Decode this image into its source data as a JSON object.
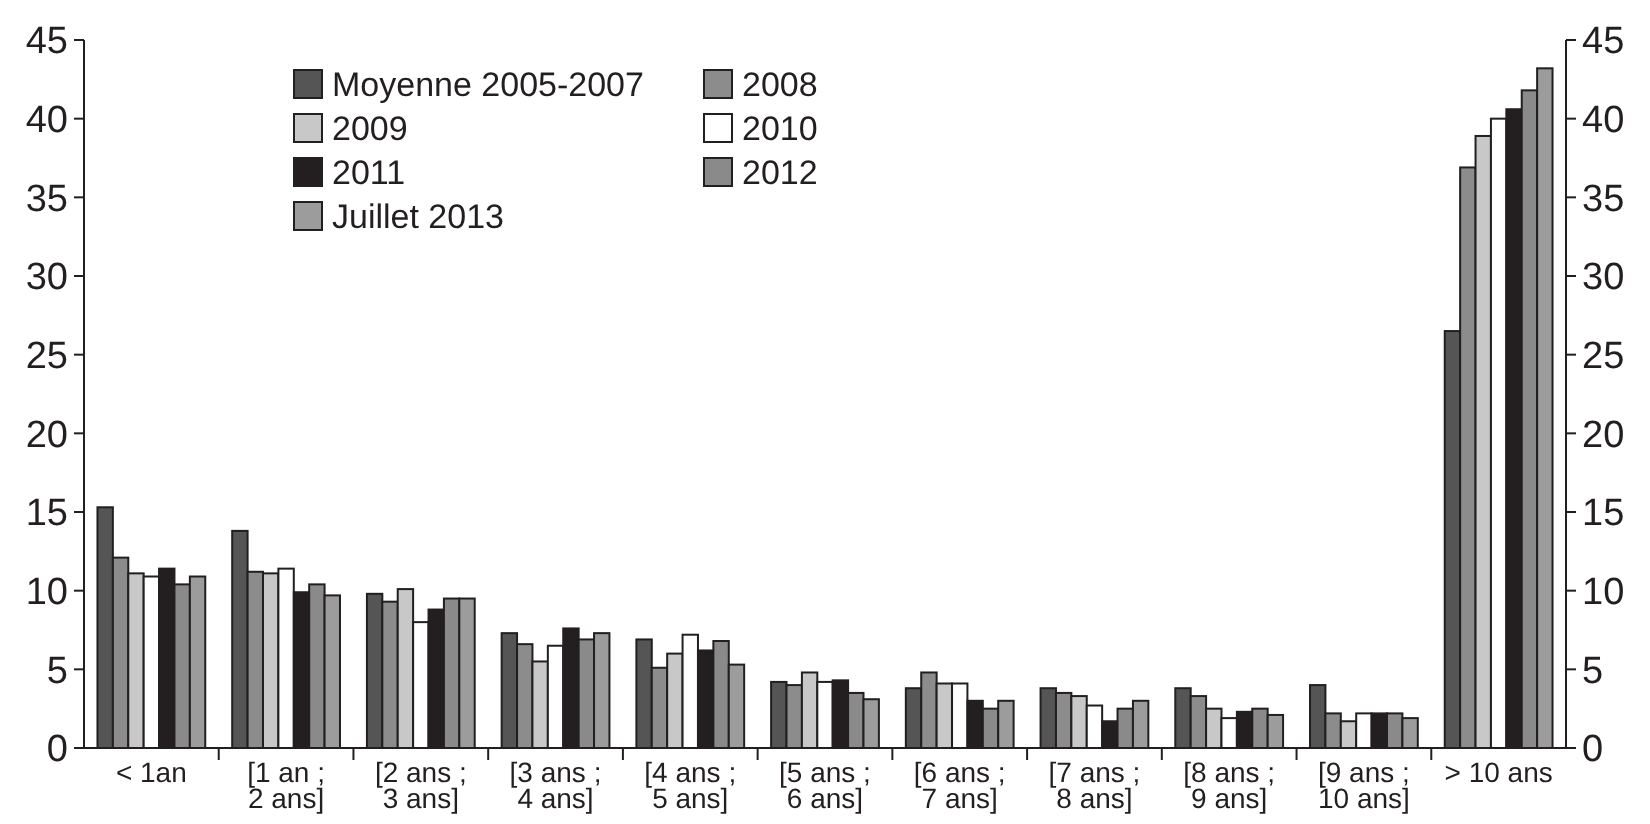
{
  "chart_data": {
    "type": "bar",
    "categories": [
      "< 1an",
      "[1 an ; 2 ans]",
      "[2 ans ; 3 ans]",
      "[3 ans ; 4 ans]",
      "[4 ans ; 5 ans]",
      "[5 ans ; 6 ans]",
      "[6 ans ; 7 ans]",
      "[7 ans ; 8 ans]",
      "[8 ans ; 9 ans]",
      "[9 ans ; 10 ans]",
      "> 10 ans"
    ],
    "series": [
      {
        "name": "Moyenne 2005-2007",
        "color": "#555555",
        "values": [
          15.3,
          13.8,
          9.8,
          7.3,
          6.9,
          4.2,
          3.8,
          3.8,
          3.8,
          4.0,
          26.5
        ]
      },
      {
        "name": "2008",
        "color": "#8c8c8c",
        "values": [
          12.1,
          11.2,
          9.3,
          6.6,
          5.1,
          4.0,
          4.8,
          3.5,
          3.3,
          2.2,
          36.9
        ]
      },
      {
        "name": "2009",
        "color": "#c8c8c8",
        "values": [
          11.1,
          11.1,
          10.1,
          5.5,
          6.0,
          4.8,
          4.1,
          3.3,
          2.5,
          1.7,
          38.9
        ]
      },
      {
        "name": "2010",
        "color": "#ffffff",
        "values": [
          10.9,
          11.4,
          8.0,
          6.5,
          7.2,
          4.2,
          4.1,
          2.7,
          1.9,
          2.2,
          40.0
        ]
      },
      {
        "name": "2011",
        "color": "#231f20",
        "values": [
          11.4,
          9.9,
          8.8,
          7.6,
          6.2,
          4.3,
          3.0,
          1.7,
          2.3,
          2.2,
          40.6
        ]
      },
      {
        "name": "2012",
        "color": "#8a8a8a",
        "values": [
          10.4,
          10.4,
          9.5,
          6.9,
          6.8,
          3.5,
          2.5,
          2.5,
          2.5,
          2.2,
          41.8
        ]
      },
      {
        "name": "Juillet 2013",
        "color": "#9c9c9c",
        "values": [
          10.9,
          9.7,
          9.5,
          7.3,
          5.3,
          3.1,
          3.0,
          3.0,
          2.1,
          1.9,
          43.2
        ]
      }
    ],
    "ylim": [
      0,
      45
    ],
    "yticks": [
      0,
      5,
      10,
      15,
      20,
      25,
      30,
      35,
      40,
      45
    ],
    "y2lim": [
      0,
      45
    ],
    "y2ticks": [
      0,
      5,
      10,
      15,
      20,
      25,
      30,
      35,
      40,
      45
    ],
    "grid": false,
    "legend": "top left"
  }
}
